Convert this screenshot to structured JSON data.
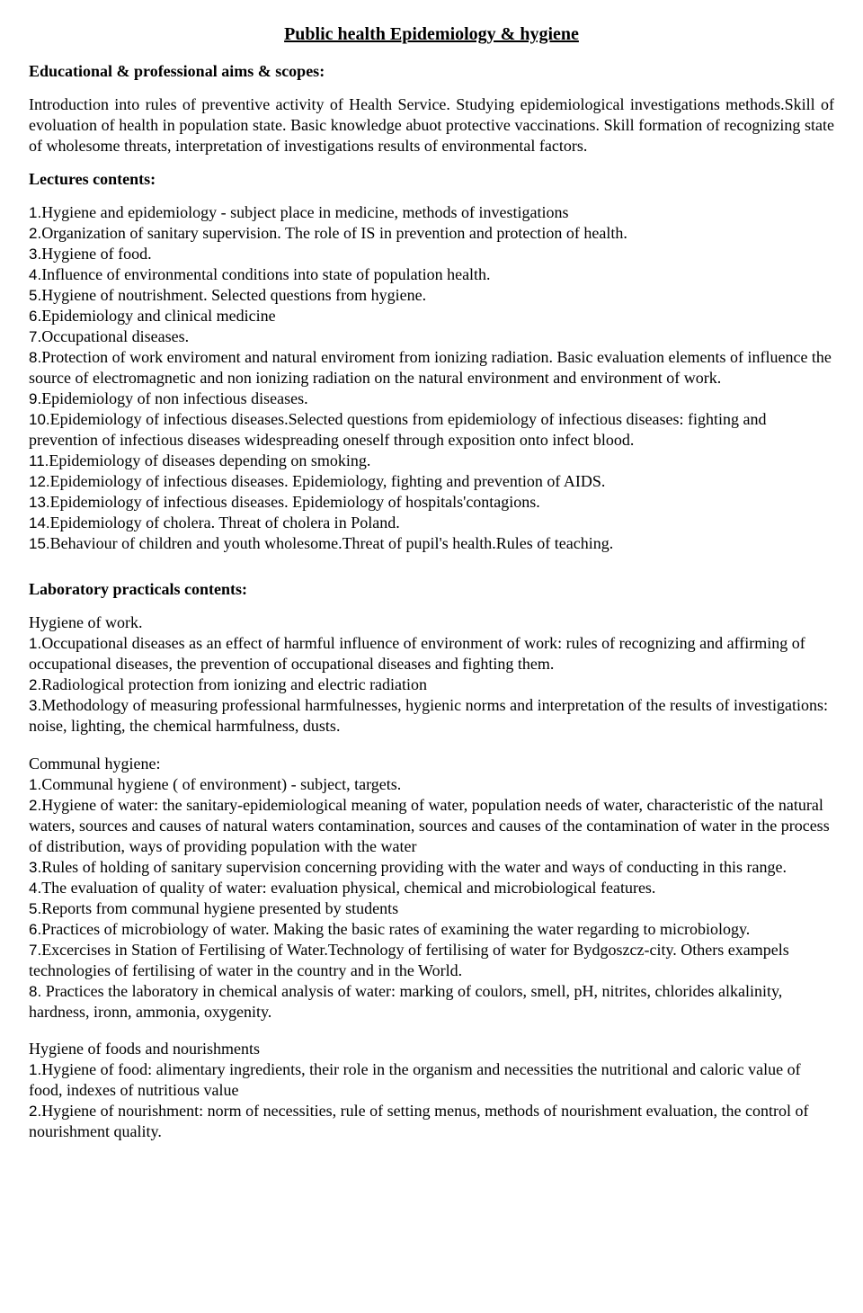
{
  "title": "Public health Epidemiology & hygiene",
  "aims_heading": "Educational & professional aims & scopes:",
  "intro": "Introduction into rules of preventive activity of Health Service. Studying epidemiological investigations methods.Skill of evoluation of health in population state. Basic knowledge abuot protective vaccinations. Skill formation of recognizing state of wholesome threats, interpretation of investigations results of environmental factors.",
  "lectures_heading": "Lectures contents:",
  "lectures": [
    "Hygiene and epidemiology - subject place in medicine, methods of investigations",
    "Organization of sanitary supervision. The role of IS in prevention and protection of health.",
    "Hygiene of food.",
    "Influence of environmental conditions into state of population health.",
    "Hygiene of noutrishment. Selected questions from hygiene.",
    "Epidemiology and clinical medicine",
    "Occupational diseases.",
    "Protection of work enviroment and natural enviroment from ionizing radiation. Basic evaluation elements of influence the source of electromagnetic and non ionizing radiation on the natural environment and environment of work.",
    "Epidemiology of non infectious diseases.",
    "Epidemiology of infectious diseases.Selected questions from epidemiology of infectious diseases: fighting and prevention of infectious diseases widespreading oneself through exposition onto infect blood.",
    "Epidemiology of diseases depending on smoking.",
    "Epidemiology of infectious diseases. Epidemiology, fighting and prevention of AIDS.",
    "Epidemiology of infectious diseases. Epidemiology of hospitals'contagions.",
    "Epidemiology of cholera. Threat of cholera in Poland.",
    "Behaviour of children and youth wholesome.Threat of pupil's health.Rules of teaching."
  ],
  "lab_heading": "Laboratory practicals contents:",
  "hygiene_work_sub": "Hygiene of work.",
  "hygiene_work": [
    "Occupational diseases as an effect of harmful influence of environment of work: rules of recognizing and affirming of occupational diseases, the prevention of occupational diseases and fighting them.",
    "Radiological protection from ionizing and electric radiation",
    "Methodology of measuring professional harmfulnesses, hygienic norms and interpretation of the results of investigations: noise, lighting, the chemical harmfulness, dusts."
  ],
  "communal_sub": "Communal hygiene:",
  "communal": [
    "Communal hygiene ( of environment) - subject, targets.",
    "Hygiene of water: the sanitary-epidemiological meaning of water, population needs of water, characteristic of the natural waters, sources and causes of natural waters contamination, sources and causes of the contamination of water in the process of distribution, ways of providing population with the water",
    "Rules of holding of sanitary supervision concerning providing with the water and ways of conducting in this range.",
    "The evaluation of quality of water: evaluation physical, chemical and microbiological features.",
    "Reports from communal hygiene presented by students",
    "Practices of microbiology of water. Making the basic rates of examining the water regarding to microbiology.",
    "Excercises in Station of Fertilising of Water.Technology of fertilising of water for Bydgoszcz-city. Others exampels technologies of fertilising of water in the country and in the World.",
    " Practices the laboratory in chemical analysis of water: marking of coulors, smell, pH, nitrites, chlorides alkalinity, hardness, ironn, ammonia, oxygenity."
  ],
  "foods_sub": "Hygiene of foods and nourishments",
  "foods": [
    "Hygiene of food: alimentary ingredients, their role in the organism and necessities the nutritional and caloric value of food, indexes of nutritious value",
    "Hygiene of nourishment: norm of necessities, rule of setting menus, methods of nourishment evaluation, the control of nourishment quality."
  ]
}
